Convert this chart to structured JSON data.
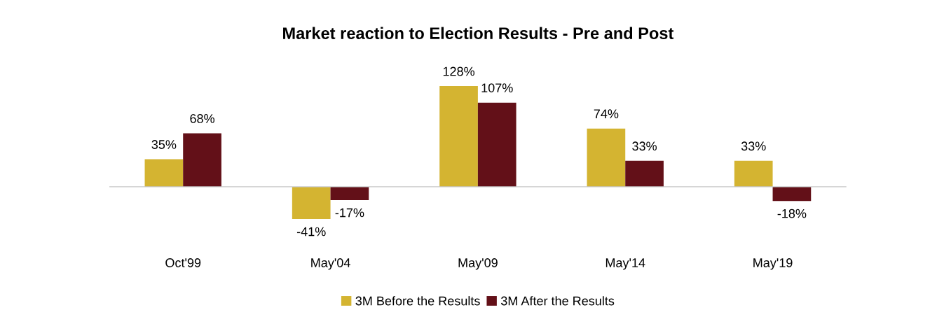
{
  "chart_data": {
    "type": "bar",
    "title": "Market reaction to Election Results - Pre and Post",
    "categories": [
      "Oct'99",
      "May'04",
      "May'09",
      "May'14",
      "May'19"
    ],
    "series": [
      {
        "name": "3M Before the Results",
        "color": "#d4b431",
        "values": [
          35,
          -41,
          128,
          74,
          33
        ],
        "value_labels": [
          "35%",
          "-41%",
          "128%",
          "74%",
          "33%"
        ]
      },
      {
        "name": "3M After the Results",
        "color": "#631018",
        "values": [
          68,
          -17,
          107,
          33,
          -18
        ],
        "value_labels": [
          "68%",
          "-17%",
          "107%",
          "33%",
          "-18%"
        ]
      }
    ],
    "legend": "bottom",
    "grid": false
  }
}
